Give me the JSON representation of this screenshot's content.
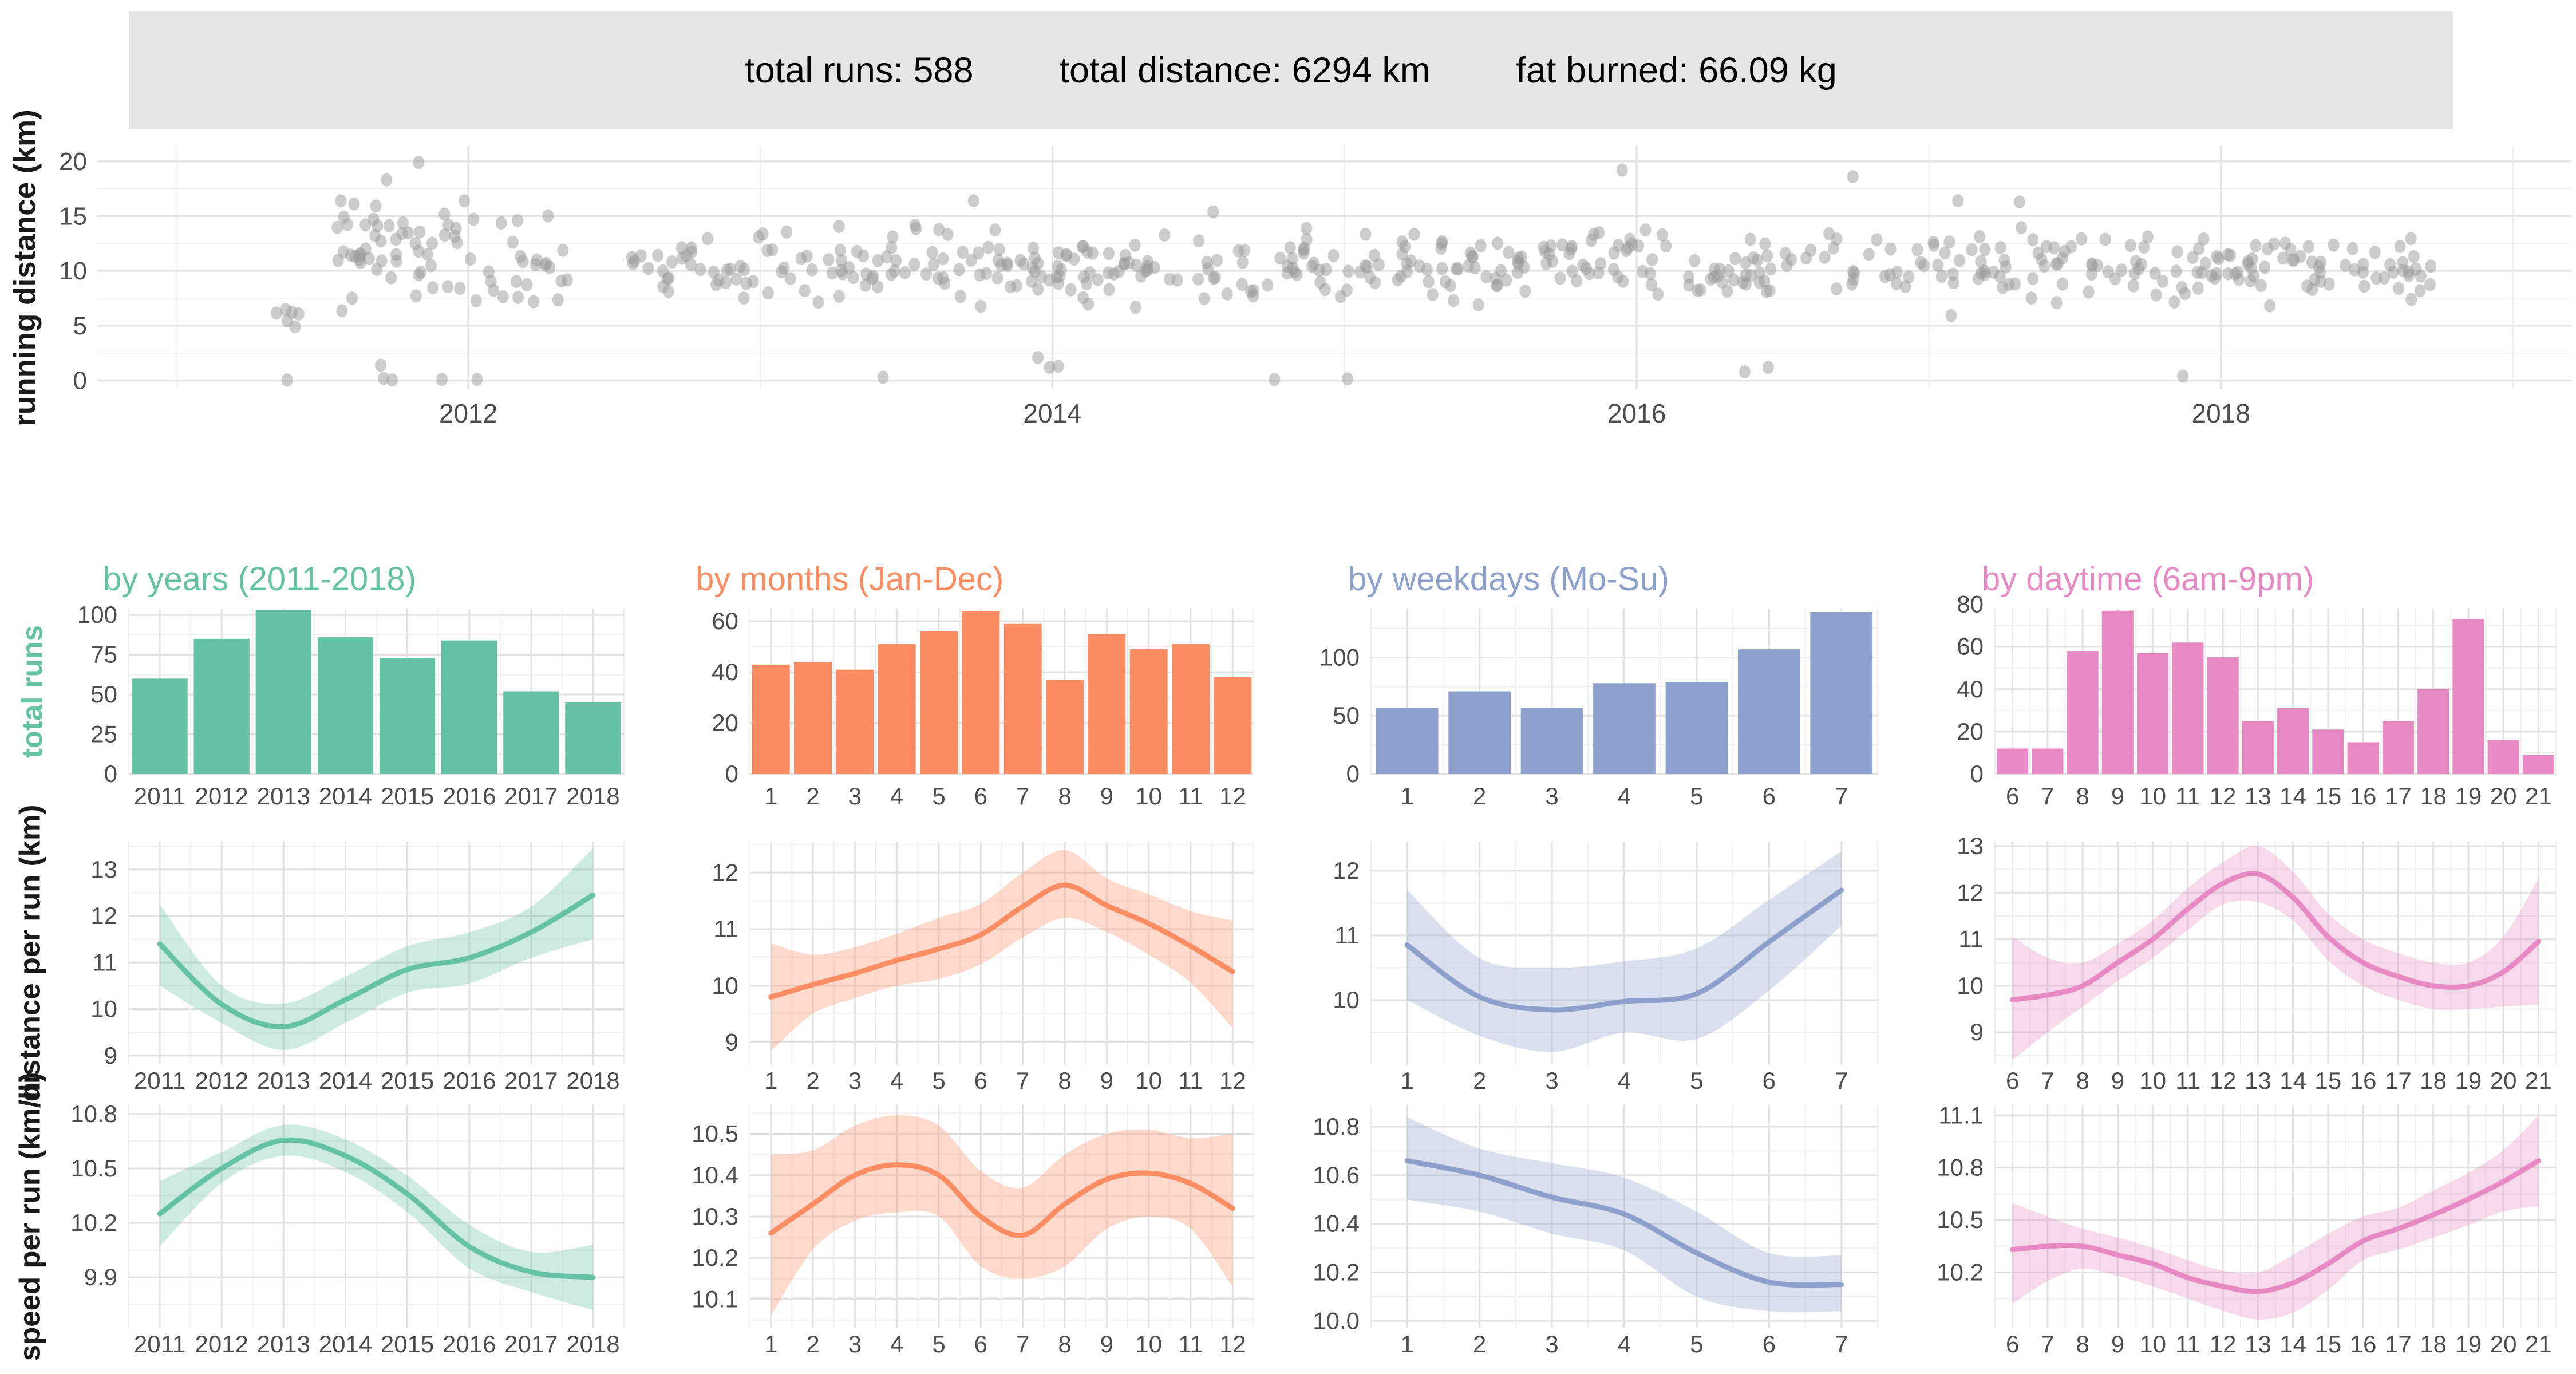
{
  "header": {
    "stats": [
      "total runs: 588",
      "total distance: 6294 km",
      "fat burned: 66.09 kg"
    ]
  },
  "chart_data": {
    "scatter": {
      "type": "scatter",
      "ylabel": "running distance (km)",
      "xlim": [
        2010.73,
        2019.2
      ],
      "ylim": [
        -0.8,
        21.4
      ],
      "x_ticks": [
        2012,
        2014,
        2016,
        2018
      ],
      "x_tick_labels": [
        "2012",
        "2014",
        "2016",
        "2018"
      ],
      "x_minor": [
        2011,
        2013,
        2015,
        2017,
        2019
      ],
      "y_ticks": [
        0,
        5,
        10,
        15,
        20
      ],
      "y_tick_labels": [
        "0",
        "5",
        "10",
        "15",
        "20"
      ],
      "point_color": "#999999",
      "point_opacity": 0.5,
      "seed": 42,
      "clusters": [
        {
          "x0": 2011.3,
          "x1": 2011.46,
          "n": 6,
          "mean": 5.8,
          "sd": 0.55,
          "min": 4.9,
          "max": 6.6
        },
        {
          "x0": 2011.55,
          "x1": 2012.02,
          "n": 54,
          "mean": 12.3,
          "sd": 2.6,
          "min": 4.6,
          "max": 16.4
        },
        {
          "x0": 2012.02,
          "x1": 2012.36,
          "n": 24,
          "mean": 10.2,
          "sd": 2.2,
          "min": 5.5,
          "max": 15.3
        },
        {
          "x0": 2012.55,
          "x1": 2018.72,
          "n": 482,
          "mean": 10.45,
          "sd": 1.55,
          "min": 3.3,
          "max": 16.3
        }
      ],
      "outliers": [
        [
          2011.38,
          0.05
        ],
        [
          2011.7,
          1.4
        ],
        [
          2011.71,
          0.2
        ],
        [
          2011.74,
          0.05
        ],
        [
          2011.83,
          19.9
        ],
        [
          2011.72,
          18.3
        ],
        [
          2011.91,
          0.1
        ],
        [
          2012.03,
          0.1
        ],
        [
          2013.42,
          0.3
        ],
        [
          2013.73,
          16.4
        ],
        [
          2013.95,
          2.1
        ],
        [
          2013.99,
          1.2
        ],
        [
          2014.02,
          1.3
        ],
        [
          2014.55,
          15.4
        ],
        [
          2014.76,
          0.1
        ],
        [
          2015.01,
          0.15
        ],
        [
          2015.95,
          19.2
        ],
        [
          2016.37,
          0.8
        ],
        [
          2016.45,
          1.2
        ],
        [
          2016.74,
          18.6
        ],
        [
          2017.1,
          16.4
        ],
        [
          2017.87,
          0.4
        ]
      ]
    },
    "row_labels": {
      "bars": "total runs",
      "bars_color": "#66C2A5",
      "distance": "distance per run (km)",
      "speed": "speed per run (km/h)"
    },
    "columns": [
      {
        "key": "years",
        "title": "by years (2011-2018)",
        "color": "#66C2A5",
        "categories": [
          "2011",
          "2012",
          "2013",
          "2014",
          "2015",
          "2016",
          "2017",
          "2018"
        ],
        "bars": {
          "type": "bar",
          "values": [
            60,
            85,
            103,
            86,
            73,
            84,
            52,
            45
          ],
          "ylim": [
            0,
            104
          ],
          "y_ticks": [
            0,
            25,
            50,
            75,
            100
          ],
          "y_tick_labels": [
            "0",
            "25",
            "50",
            "75",
            "100"
          ]
        },
        "distance": {
          "type": "line",
          "x": [
            2011,
            2012,
            2013,
            2014,
            2015,
            2016,
            2017,
            2018
          ],
          "y": [
            11.4,
            10.1,
            9.62,
            10.2,
            10.85,
            11.1,
            11.65,
            12.45
          ],
          "lo": [
            10.5,
            9.7,
            9.12,
            9.7,
            10.35,
            10.55,
            11.1,
            11.5
          ],
          "hi": [
            12.25,
            10.5,
            10.12,
            10.7,
            11.35,
            11.65,
            12.2,
            13.45
          ],
          "ylim": [
            8.8,
            13.6
          ],
          "y_ticks": [
            9,
            10,
            11,
            12,
            13
          ],
          "y_tick_labels": [
            "9",
            "10",
            "11",
            "12",
            "13"
          ]
        },
        "speed": {
          "type": "line",
          "x": [
            2011,
            2012,
            2013,
            2014,
            2015,
            2016,
            2017,
            2018
          ],
          "y": [
            10.25,
            10.5,
            10.655,
            10.57,
            10.36,
            10.07,
            9.93,
            9.9
          ],
          "lo": [
            10.07,
            10.42,
            10.57,
            10.48,
            10.26,
            9.95,
            9.82,
            9.72
          ],
          "hi": [
            10.43,
            10.59,
            10.74,
            10.66,
            10.46,
            10.19,
            10.04,
            10.08
          ],
          "ylim": [
            9.62,
            10.85
          ],
          "y_ticks": [
            9.9,
            10.2,
            10.5,
            10.8
          ],
          "y_tick_labels": [
            "9.9",
            "10.2",
            "10.5",
            "10.8"
          ]
        }
      },
      {
        "key": "months",
        "title": "by months (Jan-Dec)",
        "color": "#FC8D62",
        "categories": [
          "1",
          "2",
          "3",
          "4",
          "5",
          "6",
          "7",
          "8",
          "9",
          "10",
          "11",
          "12"
        ],
        "bars": {
          "type": "bar",
          "values": [
            43,
            44,
            41,
            51,
            56,
            64,
            59,
            37,
            55,
            49,
            51,
            38
          ],
          "ylim": [
            0,
            65
          ],
          "y_ticks": [
            0,
            20,
            40,
            60
          ],
          "y_tick_labels": [
            "0",
            "20",
            "40",
            "60"
          ]
        },
        "distance": {
          "type": "line",
          "x": [
            1,
            2,
            3,
            4,
            5,
            6,
            7,
            8,
            9,
            10,
            11,
            12
          ],
          "y": [
            9.8,
            10.02,
            10.22,
            10.45,
            10.65,
            10.9,
            11.4,
            11.78,
            11.42,
            11.1,
            10.7,
            10.25
          ],
          "lo": [
            8.85,
            9.5,
            9.78,
            10.0,
            10.12,
            10.38,
            10.85,
            11.2,
            10.95,
            10.55,
            10.05,
            9.25
          ],
          "hi": [
            10.75,
            10.55,
            10.68,
            10.92,
            11.2,
            11.45,
            12.0,
            12.4,
            11.9,
            11.62,
            11.32,
            11.15
          ],
          "ylim": [
            8.6,
            12.55
          ],
          "y_ticks": [
            9,
            10,
            11,
            12
          ],
          "y_tick_labels": [
            "9",
            "10",
            "11",
            "12"
          ]
        },
        "speed": {
          "type": "line",
          "x": [
            1,
            2,
            3,
            4,
            5,
            6,
            7,
            8,
            9,
            10,
            11,
            12
          ],
          "y": [
            10.26,
            10.33,
            10.4,
            10.425,
            10.4,
            10.3,
            10.255,
            10.33,
            10.39,
            10.405,
            10.38,
            10.32
          ],
          "lo": [
            10.06,
            10.22,
            10.29,
            10.31,
            10.3,
            10.18,
            10.15,
            10.18,
            10.27,
            10.3,
            10.27,
            10.13
          ],
          "hi": [
            10.45,
            10.46,
            10.52,
            10.545,
            10.52,
            10.41,
            10.37,
            10.45,
            10.5,
            10.51,
            10.49,
            10.5
          ],
          "ylim": [
            10.03,
            10.57
          ],
          "y_ticks": [
            10.1,
            10.2,
            10.3,
            10.4,
            10.5
          ],
          "y_tick_labels": [
            "10.1",
            "10.2",
            "10.3",
            "10.4",
            "10.5"
          ]
        }
      },
      {
        "key": "weekdays",
        "title": "by weekdays (Mo-Su)",
        "color": "#8DA0CB",
        "categories": [
          "1",
          "2",
          "3",
          "4",
          "5",
          "6",
          "7"
        ],
        "bars": {
          "type": "bar",
          "values": [
            57,
            71,
            57,
            78,
            79,
            107,
            139
          ],
          "ylim": [
            0,
            142
          ],
          "y_ticks": [
            0,
            50,
            100
          ],
          "y_tick_labels": [
            "0",
            "50",
            "100"
          ]
        },
        "distance": {
          "type": "line",
          "x": [
            1,
            2,
            3,
            4,
            5,
            6,
            7
          ],
          "y": [
            10.85,
            10.05,
            9.85,
            9.98,
            10.1,
            10.9,
            11.7
          ],
          "lo": [
            10.0,
            9.45,
            9.2,
            9.5,
            9.4,
            10.15,
            11.15
          ],
          "hi": [
            11.7,
            10.65,
            10.5,
            10.6,
            10.8,
            11.55,
            12.3
          ],
          "ylim": [
            9.0,
            12.45
          ],
          "y_ticks": [
            10,
            11,
            12
          ],
          "y_tick_labels": [
            "10",
            "11",
            "12"
          ]
        },
        "speed": {
          "type": "line",
          "x": [
            1,
            2,
            3,
            4,
            5,
            6,
            7
          ],
          "y": [
            10.66,
            10.6,
            10.51,
            10.44,
            10.28,
            10.16,
            10.15
          ],
          "lo": [
            10.5,
            10.45,
            10.36,
            10.29,
            10.1,
            10.04,
            10.04
          ],
          "hi": [
            10.84,
            10.71,
            10.65,
            10.59,
            10.45,
            10.28,
            10.27
          ],
          "ylim": [
            9.97,
            10.89
          ],
          "y_ticks": [
            10.0,
            10.2,
            10.4,
            10.6,
            10.8
          ],
          "y_tick_labels": [
            "10.0",
            "10.2",
            "10.4",
            "10.6",
            "10.8"
          ]
        }
      },
      {
        "key": "daytime",
        "title": "by daytime (6am-9pm)",
        "color": "#E78AC3",
        "categories": [
          "6",
          "7",
          "8",
          "9",
          "10",
          "11",
          "12",
          "13",
          "14",
          "15",
          "16",
          "17",
          "18",
          "19",
          "20",
          "21"
        ],
        "bars": {
          "type": "bar",
          "values": [
            12,
            12,
            58,
            77,
            57,
            62,
            55,
            25,
            31,
            21,
            15,
            25,
            40,
            73,
            16,
            9
          ],
          "ylim": [
            0,
            78
          ],
          "y_ticks": [
            0,
            20,
            40,
            60,
            80
          ],
          "y_tick_labels": [
            "0",
            "20",
            "40",
            "60",
            "80"
          ]
        },
        "distance": {
          "type": "line",
          "x": [
            6,
            7,
            8,
            9,
            10,
            11,
            12,
            13,
            14,
            15,
            16,
            17,
            18,
            19,
            20,
            21
          ],
          "y": [
            9.7,
            9.8,
            10.0,
            10.5,
            11.0,
            11.65,
            12.2,
            12.4,
            11.9,
            11.05,
            10.5,
            10.2,
            10.0,
            10.0,
            10.3,
            10.95
          ],
          "lo": [
            8.4,
            9.0,
            9.55,
            10.1,
            10.6,
            11.2,
            11.75,
            11.8,
            11.4,
            10.55,
            10.0,
            9.7,
            9.5,
            9.5,
            9.55,
            9.6
          ],
          "hi": [
            11.05,
            10.6,
            10.5,
            10.9,
            11.4,
            12.1,
            12.65,
            13.0,
            12.45,
            11.55,
            11.0,
            10.7,
            10.5,
            10.5,
            11.05,
            12.3
          ],
          "ylim": [
            8.3,
            13.1
          ],
          "y_ticks": [
            9,
            10,
            11,
            12,
            13
          ],
          "y_tick_labels": [
            "9",
            "10",
            "11",
            "12",
            "13"
          ]
        },
        "speed": {
          "type": "line",
          "x": [
            6,
            7,
            8,
            9,
            10,
            11,
            12,
            13,
            14,
            15,
            16,
            17,
            18,
            19,
            20,
            21
          ],
          "y": [
            10.33,
            10.35,
            10.35,
            10.3,
            10.25,
            10.17,
            10.12,
            10.09,
            10.14,
            10.25,
            10.38,
            10.45,
            10.53,
            10.62,
            10.72,
            10.84
          ],
          "lo": [
            10.02,
            10.15,
            10.22,
            10.18,
            10.12,
            10.05,
            9.98,
            9.93,
            9.97,
            10.1,
            10.27,
            10.33,
            10.4,
            10.47,
            10.55,
            10.58
          ],
          "hi": [
            10.6,
            10.52,
            10.45,
            10.4,
            10.34,
            10.27,
            10.21,
            10.2,
            10.3,
            10.42,
            10.52,
            10.57,
            10.67,
            10.77,
            10.9,
            11.1
          ],
          "ylim": [
            9.88,
            11.16
          ],
          "y_ticks": [
            10.2,
            10.5,
            10.8,
            11.1
          ],
          "y_tick_labels": [
            "10.2",
            "10.5",
            "10.8",
            "11.1"
          ]
        }
      }
    ]
  }
}
